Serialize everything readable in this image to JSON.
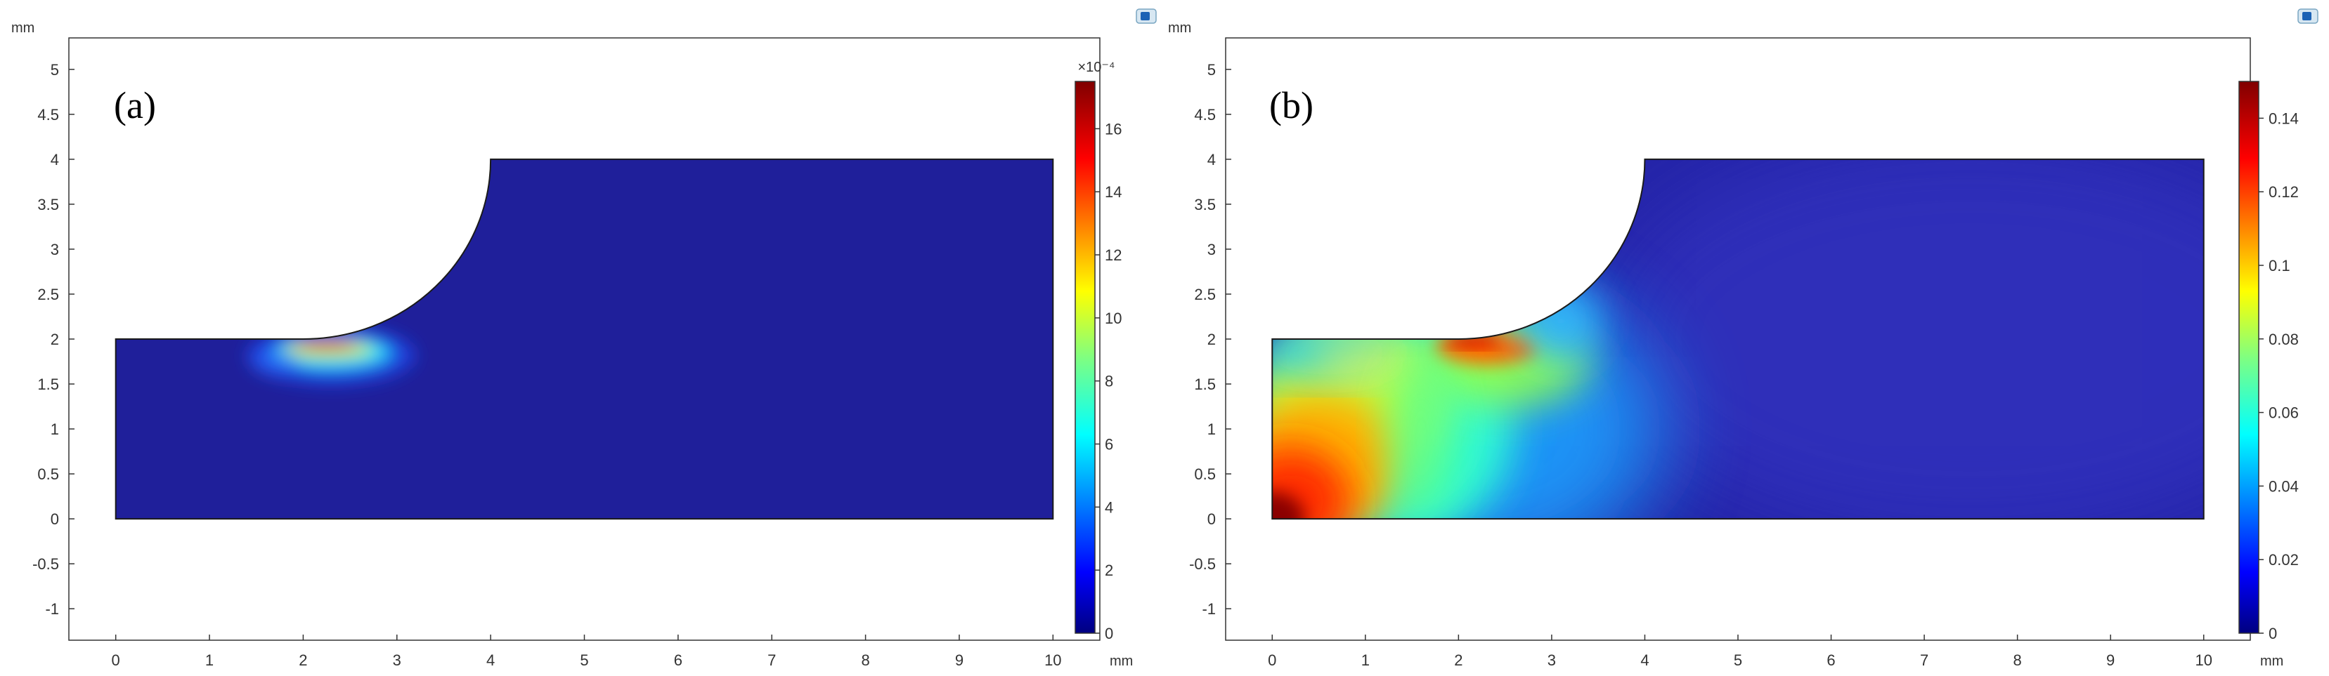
{
  "chart_data": [
    {
      "type": "heatmap",
      "panel_label": "(a)",
      "x_unit": "mm",
      "y_unit": "mm",
      "xlim": [
        -0.5,
        10.5
      ],
      "ylim": [
        -1.35,
        5.35
      ],
      "x_ticks": [
        "0",
        "1",
        "2",
        "3",
        "4",
        "5",
        "6",
        "7",
        "8",
        "9",
        "10"
      ],
      "y_ticks": [
        "5",
        "4.5",
        "4",
        "3.5",
        "3",
        "2.5",
        "2",
        "1.5",
        "1",
        "0.5",
        "0",
        "-0.5",
        "-1"
      ],
      "geometry": {
        "outline": [
          [
            0,
            0
          ],
          [
            10,
            0
          ],
          [
            10,
            4
          ],
          [
            4,
            4
          ],
          [
            2,
            2
          ],
          [
            0,
            2
          ]
        ],
        "notch_arc_center": [
          2,
          4
        ],
        "notch_arc_radius": 2
      },
      "colorbar": {
        "exponent_label": "×10⁻⁴",
        "range": [
          0,
          17.5
        ],
        "ticks": [
          "16",
          "14",
          "12",
          "10",
          "8",
          "6",
          "4",
          "2",
          "0"
        ],
        "colors": [
          "#800000",
          "#ff0000",
          "#ff8000",
          "#ffff00",
          "#80ff80",
          "#00ffff",
          "#0080ff",
          "#0000ff",
          "#000080"
        ]
      },
      "field_description_hotspots": [
        {
          "x": 2.3,
          "y": 1.95,
          "value": 17.5
        }
      ]
    },
    {
      "type": "heatmap",
      "panel_label": "(b)",
      "x_unit": "mm",
      "y_unit": "mm",
      "xlim": [
        -0.5,
        10.5
      ],
      "ylim": [
        -1.35,
        5.35
      ],
      "x_ticks": [
        "0",
        "1",
        "2",
        "3",
        "4",
        "5",
        "6",
        "7",
        "8",
        "9",
        "10"
      ],
      "y_ticks": [
        "5",
        "4.5",
        "4",
        "3.5",
        "3",
        "2.5",
        "2",
        "1.5",
        "1",
        "0.5",
        "0",
        "-0.5",
        "-1"
      ],
      "geometry": {
        "outline": [
          [
            0,
            0
          ],
          [
            10,
            0
          ],
          [
            10,
            4
          ],
          [
            4,
            4
          ],
          [
            2,
            2
          ],
          [
            0,
            2
          ]
        ],
        "notch_arc_center": [
          2,
          4
        ],
        "notch_arc_radius": 2
      },
      "colorbar": {
        "exponent_label": "",
        "range": [
          0,
          0.15
        ],
        "ticks": [
          "0.14",
          "0.12",
          "0.1",
          "0.08",
          "0.06",
          "0.04",
          "0.02",
          "0"
        ],
        "colors": [
          "#800000",
          "#ff0000",
          "#ff8000",
          "#ffff00",
          "#80ff80",
          "#00ffff",
          "#0080ff",
          "#0000ff",
          "#000080"
        ]
      },
      "field_description_hotspots": [
        {
          "x": 0.0,
          "y": 0.0,
          "value": 0.15
        },
        {
          "x": 2.2,
          "y": 1.95,
          "value": 0.14
        },
        {
          "x": 0.5,
          "y": 1.2,
          "value": 0.08
        }
      ]
    }
  ]
}
